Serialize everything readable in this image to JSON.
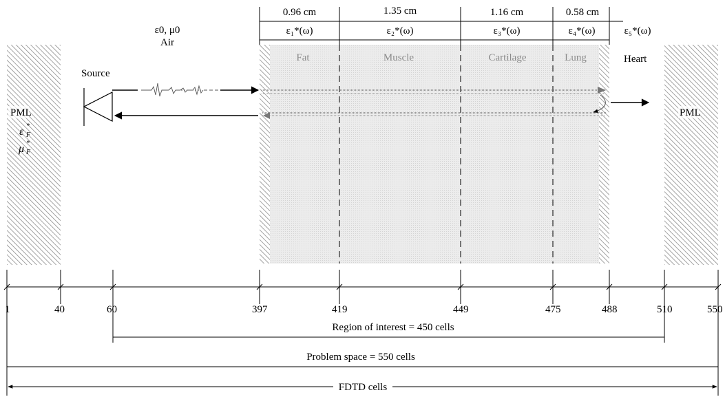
{
  "dimensions": {
    "fat": "0.96 cm",
    "muscle": "1.35 cm",
    "cartilage": "1.16 cm",
    "lung": "0.58 cm"
  },
  "permittivity": {
    "e1": "ε₁*(ω)",
    "e2": "ε₂*(ω)",
    "e3": "ε₃*(ω)",
    "e4": "ε₄*(ω)",
    "e5": "ε₅*(ω)"
  },
  "air": {
    "params": "ε0, μ0",
    "label": "Air"
  },
  "layers": {
    "fat": "Fat",
    "muscle": "Muscle",
    "cartilage": "Cartilage",
    "lung": "Lung"
  },
  "source_label": "Source",
  "heart_label": "Heart",
  "pml": {
    "left_label": "PML",
    "right_label": "PML",
    "eps_symbol": "ε",
    "mu_symbol": "μ",
    "sub": "F",
    "sup": "*"
  },
  "ticks": [
    "1",
    "40",
    "60",
    "397",
    "419",
    "449",
    "475",
    "488",
    "510",
    "550"
  ],
  "spans": {
    "roi": "Region of interest = 450 cells",
    "problem": "Problem space = 550 cells",
    "fdtd": "FDTD cells"
  },
  "colors": {
    "tissue_fill": "#ebebeb",
    "hatch": "#8c8c8c",
    "label_gray": "#8a8a8a"
  }
}
